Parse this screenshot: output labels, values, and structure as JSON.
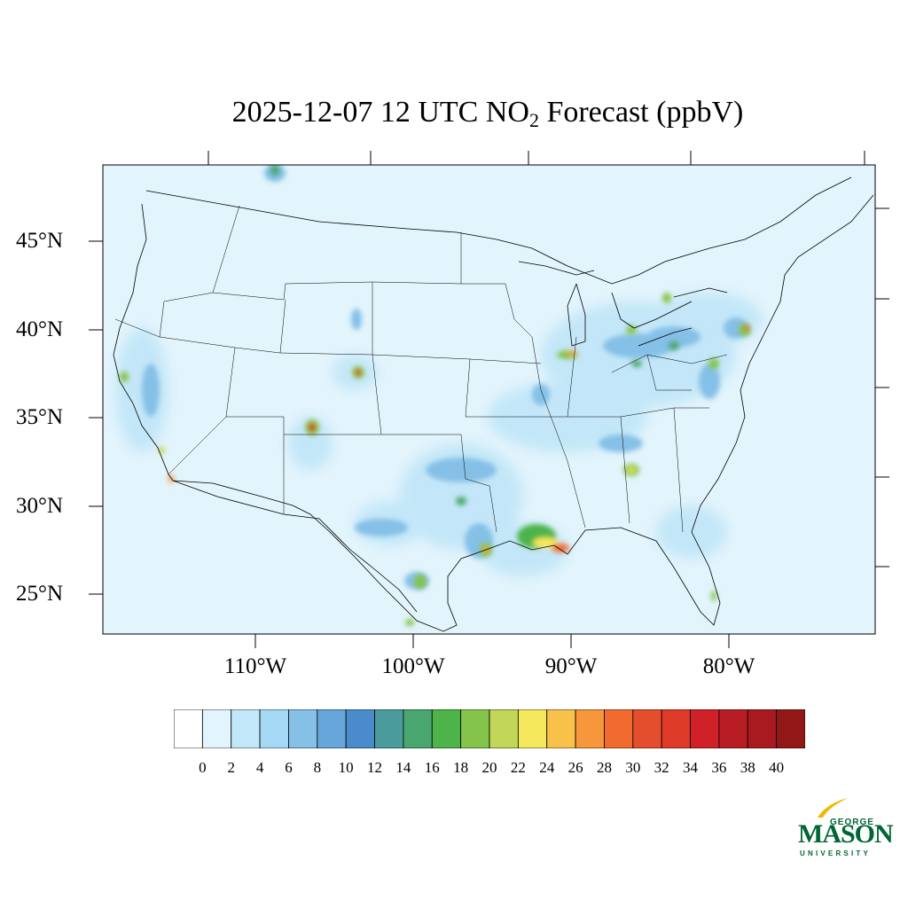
{
  "title": {
    "prefix": "2025-12-07 12 UTC NO",
    "subscript": "2",
    "suffix": " Forecast (ppbV)"
  },
  "axes": {
    "lat_labels": [
      "45°N",
      "40°N",
      "35°N",
      "30°N",
      "25°N"
    ],
    "lon_labels": [
      "110°W",
      "100°W",
      "90°W",
      "80°W"
    ]
  },
  "colorbar": {
    "ticks": [
      "0",
      "2",
      "4",
      "6",
      "8",
      "10",
      "12",
      "14",
      "16",
      "18",
      "20",
      "22",
      "24",
      "26",
      "28",
      "30",
      "32",
      "34",
      "36",
      "38",
      "40"
    ],
    "colors": [
      "#ffffff",
      "#e2f4fc",
      "#c2e7f8",
      "#a4d9f5",
      "#85c0e7",
      "#66a6da",
      "#4a8ccb",
      "#4a9c9c",
      "#48a66e",
      "#4cb448",
      "#84c44a",
      "#c2d65a",
      "#f6e85c",
      "#f8c24a",
      "#f6973c",
      "#f26b2e",
      "#e44e2c",
      "#de3a28",
      "#d02028",
      "#b81c24",
      "#a81a20",
      "#921818"
    ]
  },
  "logo": {
    "line1": "GEORGE",
    "line2": "MASON",
    "line3": "UNIVERSITY"
  }
}
